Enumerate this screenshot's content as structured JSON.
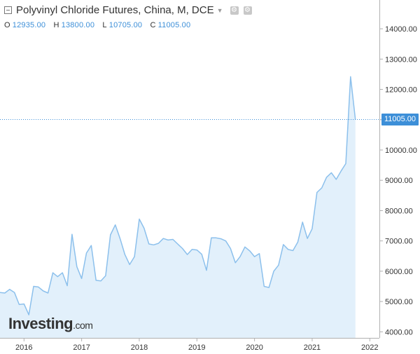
{
  "header": {
    "title": "Polyvinyl Chloride Futures, China, M, DCE",
    "ohlc": [
      {
        "key": "O",
        "value": "12935.00"
      },
      {
        "key": "H",
        "value": "13800.00"
      },
      {
        "key": "L",
        "value": "10705.00"
      },
      {
        "key": "C",
        "value": "11005.00"
      }
    ]
  },
  "brand": {
    "name": "Investing",
    "suffix": ".com"
  },
  "last_price_label": "11005.00",
  "colors": {
    "line": "#8cc0ec",
    "fill": "#e2f0fb",
    "accent": "#3d8fd8",
    "axis": "#b0b0b0"
  },
  "chart_data": {
    "type": "area",
    "x_ticks": [
      "2016",
      "2017",
      "2018",
      "2019",
      "2020",
      "2021",
      "2022"
    ],
    "y_ticks": [
      "4000.00",
      "5000.00",
      "6000.00",
      "7000.00",
      "8000.00",
      "9000.00",
      "10000.00",
      "11000.00",
      "12000.00",
      "13000.00",
      "14000.00"
    ],
    "ylim": [
      3800,
      14950
    ],
    "xlim": [
      "2015-08",
      "2022-03"
    ],
    "last_value": 11005,
    "x": [
      "2015-08",
      "2015-09",
      "2015-10",
      "2015-11",
      "2015-12",
      "2016-01",
      "2016-02",
      "2016-03",
      "2016-04",
      "2016-05",
      "2016-06",
      "2016-07",
      "2016-08",
      "2016-09",
      "2016-10",
      "2016-11",
      "2016-12",
      "2017-01",
      "2017-02",
      "2017-03",
      "2017-04",
      "2017-05",
      "2017-06",
      "2017-07",
      "2017-08",
      "2017-09",
      "2017-10",
      "2017-11",
      "2017-12",
      "2018-01",
      "2018-02",
      "2018-03",
      "2018-04",
      "2018-05",
      "2018-06",
      "2018-07",
      "2018-08",
      "2018-09",
      "2018-10",
      "2018-11",
      "2018-12",
      "2019-01",
      "2019-02",
      "2019-03",
      "2019-04",
      "2019-05",
      "2019-06",
      "2019-07",
      "2019-08",
      "2019-09",
      "2019-10",
      "2019-11",
      "2019-12",
      "2020-01",
      "2020-02",
      "2020-03",
      "2020-04",
      "2020-05",
      "2020-06",
      "2020-07",
      "2020-08",
      "2020-09",
      "2020-10",
      "2020-11",
      "2020-12",
      "2021-01",
      "2021-02",
      "2021-03",
      "2021-04",
      "2021-05",
      "2021-06",
      "2021-07",
      "2021-08",
      "2021-09",
      "2021-10"
    ],
    "values": [
      5300,
      5280,
      5400,
      5300,
      4900,
      4920,
      4560,
      5500,
      5480,
      5350,
      5280,
      5950,
      5820,
      5950,
      5520,
      7220,
      6150,
      5760,
      6600,
      6850,
      5700,
      5680,
      5850,
      7200,
      7530,
      7080,
      6550,
      6220,
      6480,
      7720,
      7420,
      6900,
      6870,
      6920,
      7080,
      7030,
      7050,
      6900,
      6750,
      6550,
      6720,
      6700,
      6560,
      6030,
      7100,
      7100,
      7070,
      7000,
      6750,
      6280,
      6480,
      6800,
      6670,
      6480,
      6580,
      5500,
      5460,
      6000,
      6200,
      6880,
      6720,
      6680,
      6960,
      7620,
      7080,
      7400,
      8600,
      8750,
      9100,
      9250,
      9030,
      9300,
      9550,
      12420,
      11005
    ]
  }
}
